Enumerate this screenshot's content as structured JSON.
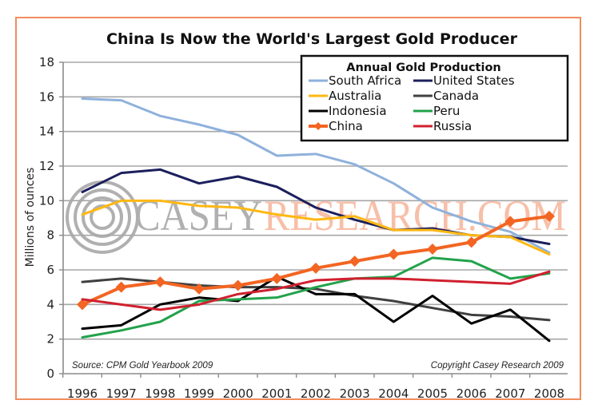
{
  "chart_data": {
    "type": "line",
    "title": "China Is Now the World's Largest Gold Producer",
    "xlabel": "",
    "ylabel": "Millions of ounces",
    "ylim": [
      0,
      18
    ],
    "yticks": [
      "0",
      "2",
      "4",
      "6",
      "8",
      "10",
      "12",
      "14",
      "16",
      "18"
    ],
    "grid": true,
    "categories": [
      "1996",
      "1997",
      "1998",
      "1999",
      "2000",
      "2001",
      "2002",
      "2003",
      "2004",
      "2005",
      "2006",
      "2007",
      "2008"
    ],
    "legend": {
      "title": "Annual Gold Production",
      "placement": "top-right"
    },
    "series": [
      {
        "name": "South Africa",
        "color": "#8fb1dc",
        "values": [
          15.9,
          15.8,
          14.9,
          14.4,
          13.8,
          12.6,
          12.7,
          12.1,
          11.0,
          9.6,
          8.8,
          8.2,
          7.0
        ]
      },
      {
        "name": "United States",
        "color": "#1c1f5c",
        "values": [
          10.5,
          11.6,
          11.8,
          11.0,
          11.4,
          10.8,
          9.6,
          8.9,
          8.3,
          8.4,
          8.0,
          7.9,
          7.5
        ]
      },
      {
        "name": "Australia",
        "color": "#fdb813",
        "values": [
          9.2,
          10.0,
          10.0,
          9.7,
          9.6,
          9.2,
          8.9,
          9.1,
          8.3,
          8.3,
          8.0,
          7.9,
          6.9
        ]
      },
      {
        "name": "Canada",
        "color": "#404040",
        "values": [
          5.3,
          5.5,
          5.3,
          5.1,
          5.0,
          5.0,
          4.9,
          4.5,
          4.2,
          3.8,
          3.4,
          3.3,
          3.1
        ]
      },
      {
        "name": "Indonesia",
        "color": "#000000",
        "values": [
          2.6,
          2.8,
          4.0,
          4.4,
          4.2,
          5.6,
          4.6,
          4.6,
          3.0,
          4.5,
          2.9,
          3.7,
          1.9
        ]
      },
      {
        "name": "Peru",
        "color": "#22a24b",
        "values": [
          2.1,
          2.5,
          3.0,
          4.2,
          4.3,
          4.4,
          5.0,
          5.5,
          5.6,
          6.7,
          6.5,
          5.5,
          5.8
        ]
      },
      {
        "name": "China",
        "color": "#f26522",
        "marker": "diamond",
        "values": [
          4.0,
          5.0,
          5.3,
          4.9,
          5.1,
          5.5,
          6.1,
          6.5,
          6.9,
          7.2,
          7.6,
          8.8,
          9.1
        ]
      },
      {
        "name": "Russia",
        "color": "#d0202e",
        "values": [
          4.3,
          4.0,
          3.7,
          4.0,
          4.6,
          4.9,
          5.4,
          5.5,
          5.5,
          5.4,
          5.3,
          5.2,
          5.9
        ]
      }
    ],
    "annotations": {
      "source": "Source: CPM Gold Yearbook 2009",
      "copyright": "Copyright Casey Research 2009"
    },
    "watermark": {
      "brand": "CASEY",
      "suffix": "RESEARCH.COM"
    }
  },
  "colors": {
    "frame": "#f08c5c",
    "grid": "#a6a6a6",
    "axis": "#8c8c8c",
    "watermark_gray": "#a8a8a8",
    "watermark_orange": "#f7b9a0"
  }
}
